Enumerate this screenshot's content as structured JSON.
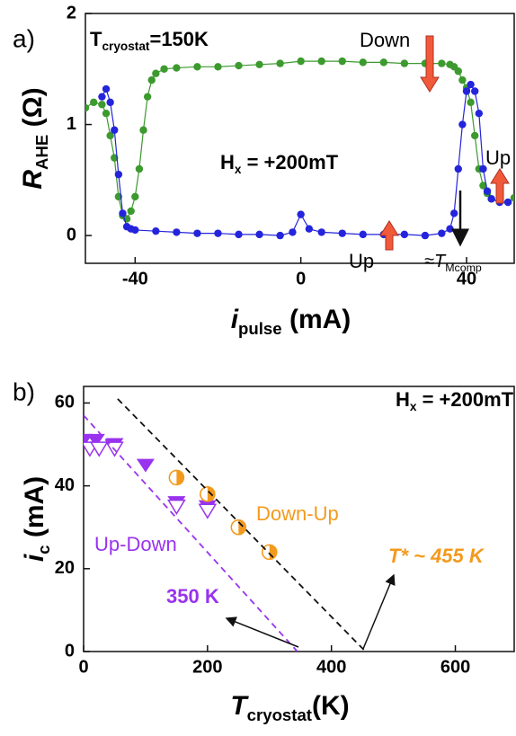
{
  "chart_data": [
    {
      "type": "line",
      "label": "a)",
      "x_label": {
        "main": "i",
        "sub": "pulse",
        "unit": " (mA)"
      },
      "y_label": {
        "main": "R",
        "sub": "AHE",
        "unit": " (Ω)"
      },
      "xlim": [
        -52,
        51.5
      ],
      "ylim": [
        -0.25,
        2
      ],
      "xticks": [
        -40,
        0,
        40
      ],
      "yticks": [
        0,
        1,
        2
      ],
      "series": [
        {
          "color": "#3c9a2e",
          "x": [
            -52,
            -50,
            -48,
            -47,
            -46,
            -45,
            -44,
            -43,
            -42,
            -41,
            -40,
            -39,
            -38,
            -37,
            -36,
            -35,
            -33,
            -30,
            -25,
            -20,
            -15,
            -10,
            -5,
            0,
            5,
            10,
            15,
            20,
            25,
            30,
            34,
            36,
            37,
            38,
            39,
            40,
            41,
            42,
            43,
            44,
            45,
            46,
            48,
            50,
            51.5
          ],
          "values": [
            1.15,
            1.2,
            1.18,
            1.1,
            0.9,
            0.7,
            0.35,
            0.18,
            0.15,
            0.22,
            0.35,
            0.6,
            0.95,
            1.25,
            1.4,
            1.46,
            1.5,
            1.51,
            1.52,
            1.52,
            1.53,
            1.54,
            1.55,
            1.57,
            1.57,
            1.57,
            1.56,
            1.56,
            1.55,
            1.55,
            1.55,
            1.54,
            1.52,
            1.48,
            1.4,
            1.33,
            1.2,
            0.9,
            0.6,
            0.45,
            0.38,
            0.33,
            0.3,
            0.3,
            0.34
          ]
        },
        {
          "color": "#2424dc",
          "x": [
            -48,
            -47,
            -46,
            -45,
            -44,
            -43,
            -42,
            -41,
            -40,
            -35,
            -30,
            -25,
            -20,
            -15,
            -10,
            -5,
            -2,
            0,
            2,
            5,
            10,
            15,
            20,
            25,
            30,
            34,
            36,
            37,
            38,
            39,
            40,
            41,
            42,
            43,
            44,
            45,
            46,
            48,
            50
          ],
          "values": [
            1.25,
            1.32,
            1.2,
            0.95,
            0.55,
            0.2,
            0.08,
            0.06,
            0.05,
            0.04,
            0.03,
            0.02,
            0.02,
            0.01,
            0.01,
            0.0,
            0.03,
            0.19,
            0.06,
            0.03,
            0.02,
            0.01,
            0.01,
            0.01,
            0.0,
            0.02,
            0.06,
            0.2,
            0.6,
            1.0,
            1.3,
            1.36,
            1.3,
            1.1,
            0.6,
            0.4,
            0.33,
            0.3,
            0.3
          ]
        }
      ],
      "annotations": {
        "temperature": {
          "main": "T",
          "sub": "cryostat",
          "rest": "=150K"
        },
        "field": {
          "main": "H",
          "sub": "x",
          "rest": " = +200mT"
        },
        "down": "Down",
        "up_left": "Up",
        "up_right": "Up",
        "compensation": {
          "main": "≈T",
          "sub": "Mcomp"
        }
      }
    },
    {
      "type": "scatter",
      "label": "b)",
      "x_label": {
        "main": "T",
        "sub": "cryostat",
        "unit": "(K)"
      },
      "y_label": {
        "main": "i",
        "sub": "c",
        "unit": " (mA)"
      },
      "xlim": [
        0,
        695
      ],
      "ylim": [
        0,
        64
      ],
      "xticks": [
        0,
        200,
        400,
        600
      ],
      "yticks": [
        0,
        20,
        40,
        60
      ],
      "series": [
        {
          "name": "Up-Down",
          "color": "#9933ee",
          "marker": "triangle-filled",
          "x": [
            0,
            20,
            50,
            100,
            150,
            200
          ],
          "values": [
            51,
            51,
            50,
            45,
            36,
            35
          ]
        },
        {
          "color": "#9933ee",
          "marker": "triangle-open",
          "x": [
            10,
            25,
            50,
            150,
            200
          ],
          "values": [
            49,
            49,
            49,
            35,
            34
          ]
        },
        {
          "name": "Down-Up",
          "color": "#f39a1e",
          "marker": "half-circle",
          "x": [
            150,
            200,
            250,
            300
          ],
          "values": [
            42,
            38,
            30,
            24
          ]
        },
        {
          "color": "#9933ee",
          "marker": "none",
          "dash": true,
          "x": [
            0,
            345
          ],
          "values": [
            57,
            0
          ]
        },
        {
          "color": "#111111",
          "marker": "none",
          "dash": true,
          "x": [
            55,
            455
          ],
          "values": [
            61,
            0
          ]
        }
      ],
      "annotations": {
        "field": {
          "main": "H",
          "sub": "x",
          "rest": " = +200mT"
        },
        "low": "350 K",
        "high": "T* ~ 455 K"
      }
    }
  ]
}
